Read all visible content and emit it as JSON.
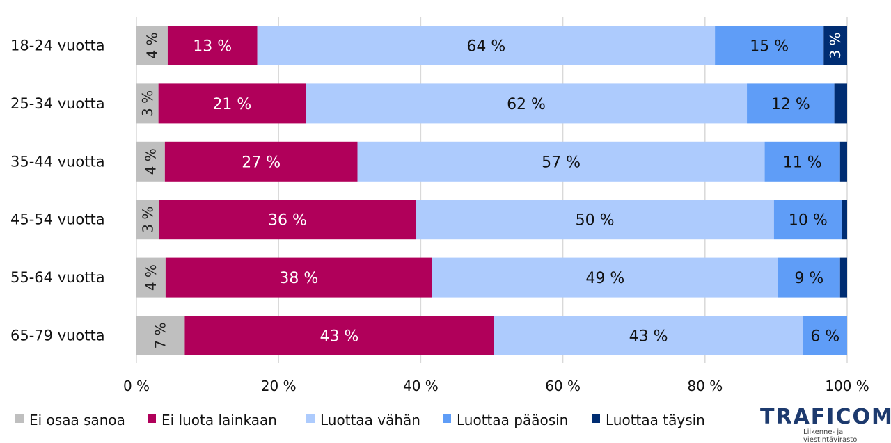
{
  "chart_data": {
    "type": "bar",
    "orientation": "horizontal-stacked-100",
    "categories": [
      "18-24 vuotta",
      "25-34 vuotta",
      "35-44 vuotta",
      "45-54 vuotta",
      "55-64 vuotta",
      "65-79 vuotta"
    ],
    "series": [
      {
        "name": "Ei osaa sanoa",
        "color": "#bfbfbf",
        "values": [
          4.4,
          3.1,
          4.0,
          3.2,
          4.1,
          6.8
        ],
        "labels": [
          "4 %",
          "3 %",
          "4 %",
          "3 %",
          "4 %",
          "7 %"
        ],
        "label_rotated": true,
        "label_color": "#222222"
      },
      {
        "name": "Ei luota lainkaan",
        "color": "#b0005a",
        "values": [
          12.6,
          20.7,
          27.1,
          36.1,
          37.5,
          43.5
        ],
        "labels": [
          "13 %",
          "21 %",
          "27 %",
          "36 %",
          "38 %",
          "43 %"
        ],
        "label_rotated": false,
        "label_color": "#ffffff"
      },
      {
        "name": "Luottaa vähän",
        "color": "#adcbfd",
        "values": [
          64.4,
          62.1,
          57.3,
          50.4,
          48.7,
          43.5
        ],
        "labels": [
          "64 %",
          "62 %",
          "57 %",
          "50 %",
          "49 %",
          "43 %"
        ],
        "label_rotated": false,
        "label_color": "#111111"
      },
      {
        "name": "Luottaa pääosin",
        "color": "#5f9df7",
        "values": [
          15.3,
          12.3,
          10.6,
          9.6,
          8.7,
          6.2
        ],
        "labels": [
          "15 %",
          "12 %",
          "11 %",
          "10 %",
          "9 %",
          "6 %"
        ],
        "label_rotated": false,
        "label_color": "#111111"
      },
      {
        "name": "Luottaa täysin",
        "color": "#002d72",
        "values": [
          3.3,
          1.8,
          1.0,
          0.7,
          1.0,
          0
        ],
        "labels": [
          "3 %",
          null,
          null,
          null,
          null,
          null
        ],
        "label_rotated": true,
        "label_color": "#ffffff"
      }
    ],
    "xlim": [
      0,
      100
    ],
    "xticks": [
      "0 %",
      "20 %",
      "40 %",
      "60 %",
      "80 %",
      "100 %"
    ],
    "grid": true,
    "legend_position": "bottom-left"
  },
  "logo": {
    "name": "TRAFICOM",
    "subtitle": "Liikenne- ja viestintävirasto"
  }
}
